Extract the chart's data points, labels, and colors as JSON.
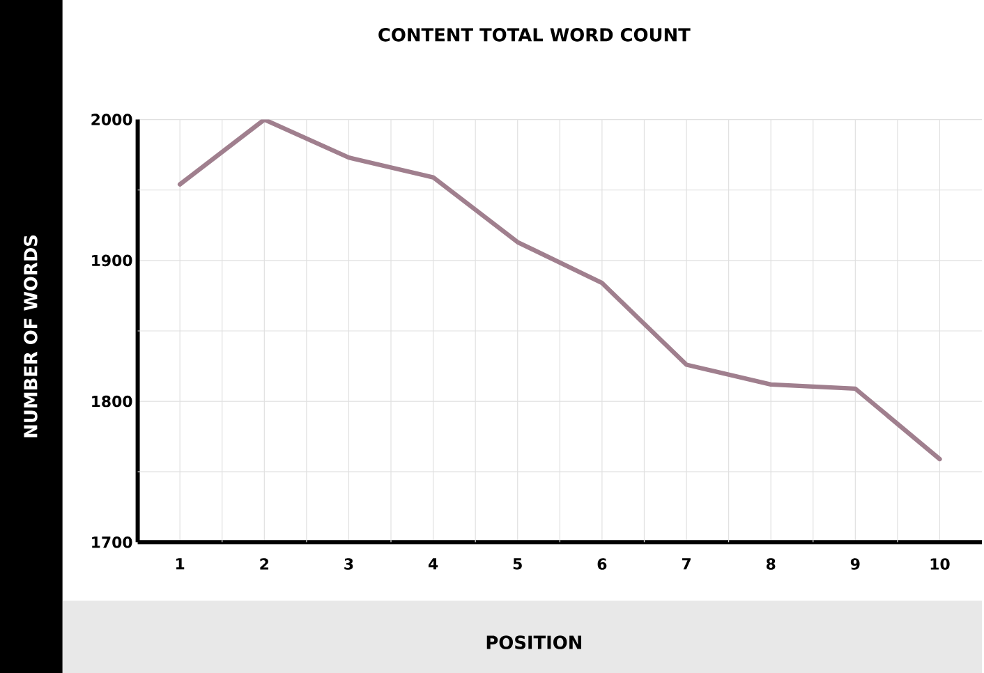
{
  "chart_data": {
    "type": "line",
    "title": "CONTENT TOTAL WORD COUNT",
    "xlabel": "POSITION",
    "ylabel": "NUMBER OF WORDS",
    "x": [
      1,
      2,
      3,
      4,
      5,
      6,
      7,
      8,
      9,
      10
    ],
    "values": [
      1954,
      2000,
      1973,
      1959,
      1913,
      1884,
      1826,
      1812,
      1809,
      1759
    ],
    "color": "#a07f8e",
    "xlim": [
      0.5,
      10.5
    ],
    "ylim": [
      1700,
      2000
    ],
    "xticks": [
      1,
      2,
      3,
      4,
      5,
      6,
      7,
      8,
      9,
      10,
      {
        "value": 1.5,
        "label": null
      },
      {
        "value": 2.5,
        "label": null
      },
      {
        "value": 3.5,
        "label": null
      },
      {
        "value": 4.5,
        "label": null
      },
      {
        "value": 5.5,
        "label": null
      },
      {
        "value": 6.5,
        "label": null
      },
      {
        "value": 7.5,
        "label": null
      },
      {
        "value": 8.5,
        "label": null
      },
      {
        "value": 9.5,
        "label": null
      }
    ],
    "yticks": [
      1700,
      1800,
      1900,
      2000,
      {
        "value": 1750,
        "label": null
      },
      {
        "value": 1850,
        "label": null
      },
      {
        "value": 1950,
        "label": null
      }
    ],
    "grid": true,
    "marker": "none",
    "line_style": "solid"
  }
}
